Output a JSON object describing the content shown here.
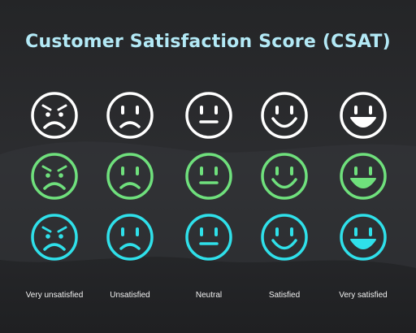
{
  "title": "Customer Satisfaction Score (CSAT)",
  "labels": [
    "Very unsatisfied",
    "Unsatisfied",
    "Neutral",
    "Satisfied",
    "Very satisfied"
  ]
}
